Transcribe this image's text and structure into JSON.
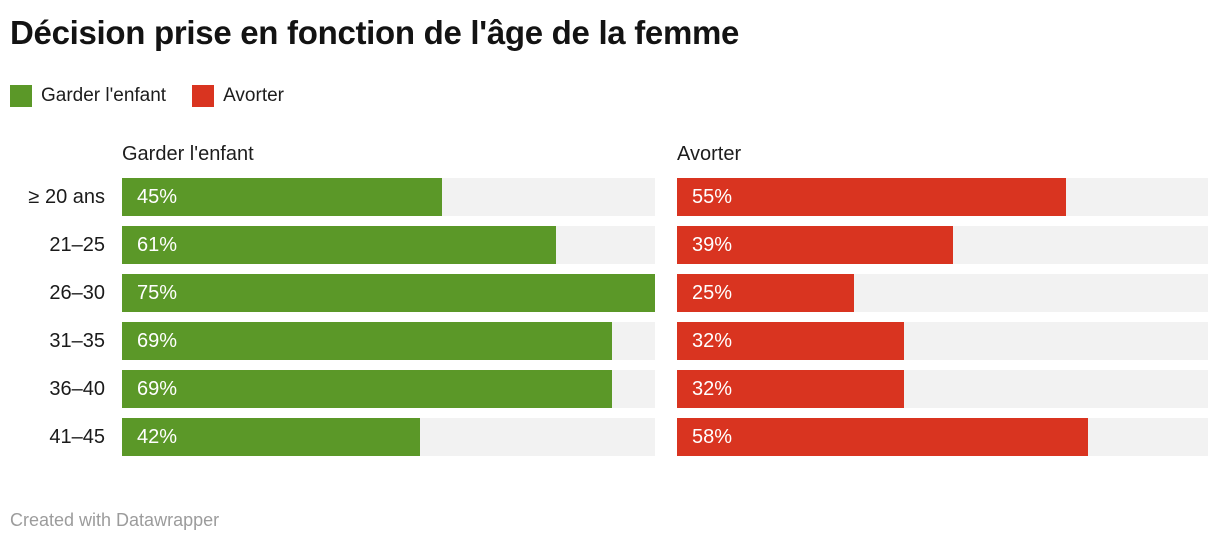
{
  "title": "Décision prise en fonction de l'âge de la femme",
  "legend": {
    "items": [
      {
        "label": "Garder l'enfant",
        "color": "#5b9828"
      },
      {
        "label": "Avorter",
        "color": "#d93420"
      }
    ]
  },
  "columns": {
    "left_header": "Garder l'enfant",
    "right_header": "Avorter"
  },
  "rows": [
    {
      "label": "≥ 20 ans",
      "keep": {
        "value": 45,
        "display": "45%"
      },
      "abort": {
        "value": 55,
        "display": "55%"
      }
    },
    {
      "label": "21–25",
      "keep": {
        "value": 61,
        "display": "61%"
      },
      "abort": {
        "value": 39,
        "display": "39%"
      }
    },
    {
      "label": "26–30",
      "keep": {
        "value": 75,
        "display": "75%"
      },
      "abort": {
        "value": 25,
        "display": "25%"
      }
    },
    {
      "label": "31–35",
      "keep": {
        "value": 69,
        "display": "69%"
      },
      "abort": {
        "value": 32,
        "display": "32%"
      }
    },
    {
      "label": "36–40",
      "keep": {
        "value": 69,
        "display": "69%"
      },
      "abort": {
        "value": 32,
        "display": "32%"
      }
    },
    {
      "label": "41–45",
      "keep": {
        "value": 42,
        "display": "42%"
      },
      "abort": {
        "value": 58,
        "display": "58%"
      }
    }
  ],
  "footer": {
    "credit": "Created with Datawrapper"
  },
  "chart_data": {
    "type": "bar",
    "variant": "split-bars-horizontal",
    "title": "Décision prise en fonction de l'âge de la femme",
    "categories": [
      "≥ 20 ans",
      "21–25",
      "26–30",
      "31–35",
      "36–40",
      "41–45"
    ],
    "series": [
      {
        "name": "Garder l'enfant",
        "color": "#5b9828",
        "values": [
          45,
          61,
          75,
          69,
          69,
          42
        ]
      },
      {
        "name": "Avorter",
        "color": "#d93420",
        "values": [
          55,
          39,
          25,
          32,
          32,
          58
        ]
      }
    ],
    "unit": "%",
    "value_scale_max": 75,
    "track_color": "#f2f2f2",
    "value_labels": "inside-start",
    "legend_position": "top-left",
    "grid": false
  }
}
